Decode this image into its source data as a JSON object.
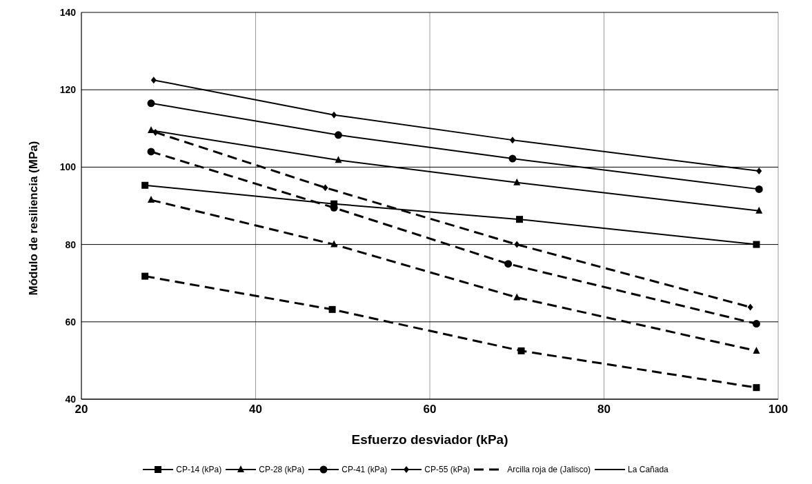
{
  "chart_data": {
    "type": "line",
    "xlabel": "Esfuerzo  desviador (kPa)",
    "ylabel": "Módulo de resiliencia (MPa)",
    "xlim": [
      20,
      100
    ],
    "xticks": [
      20,
      40,
      60,
      80,
      100
    ],
    "ylim": [
      40,
      140
    ],
    "yticks": [
      40,
      60,
      80,
      100,
      120,
      140
    ],
    "grid": true,
    "legend": "bottom",
    "series": [
      {
        "name": "CP-14 (kPa)",
        "color": "#000000",
        "marker": "square",
        "line_style": "solid",
        "x": [
          27.3,
          49,
          70.3,
          97.5
        ],
        "values": [
          95.3,
          90.5,
          86.5,
          80
        ]
      },
      {
        "name": "CP-28 (kPa)",
        "color": "#000000",
        "marker": "triangle",
        "line_style": "solid",
        "x": [
          28,
          49.5,
          70,
          97.8
        ],
        "values": [
          109.5,
          101.8,
          96,
          88.7
        ]
      },
      {
        "name": "CP-41 (kPa)",
        "color": "#000000",
        "marker": "circle",
        "line_style": "solid",
        "x": [
          28,
          49.5,
          69.5,
          97.8
        ],
        "values": [
          116.5,
          108.3,
          102.2,
          94.3
        ]
      },
      {
        "name": "CP-55 (kPa)",
        "color": "#000000",
        "marker": "diamond",
        "line_style": "solid",
        "x": [
          28.3,
          49,
          69.5,
          97.8
        ],
        "values": [
          122.5,
          113.5,
          107,
          99
        ]
      },
      {
        "color": "#000000",
        "marker": "square",
        "line_style": "dashed",
        "x": [
          27.3,
          48.8,
          70.5,
          97.5
        ],
        "values": [
          71.8,
          63.2,
          52.5,
          43
        ]
      },
      {
        "color": "#000000",
        "marker": "triangle",
        "line_style": "dashed",
        "x": [
          28,
          49,
          70,
          97.5
        ],
        "values": [
          91.5,
          80,
          66.3,
          52.5
        ]
      },
      {
        "color": "#000000",
        "marker": "circle",
        "line_style": "dashed",
        "x": [
          28,
          49,
          69,
          97.5
        ],
        "values": [
          104,
          89.5,
          75,
          59.5
        ]
      },
      {
        "color": "#000000",
        "marker": "diamond",
        "line_style": "dashed",
        "x": [
          28.5,
          48,
          70,
          96.8
        ],
        "values": [
          109,
          94.7,
          80,
          63.8
        ]
      },
      {
        "name": "Arcilla roja de (Jalisco)",
        "color": "#000000",
        "marker": "none",
        "line_style": "dashed"
      },
      {
        "name": "La Cañada",
        "color": "#000000",
        "marker": "none",
        "line_style": "solid"
      }
    ]
  }
}
